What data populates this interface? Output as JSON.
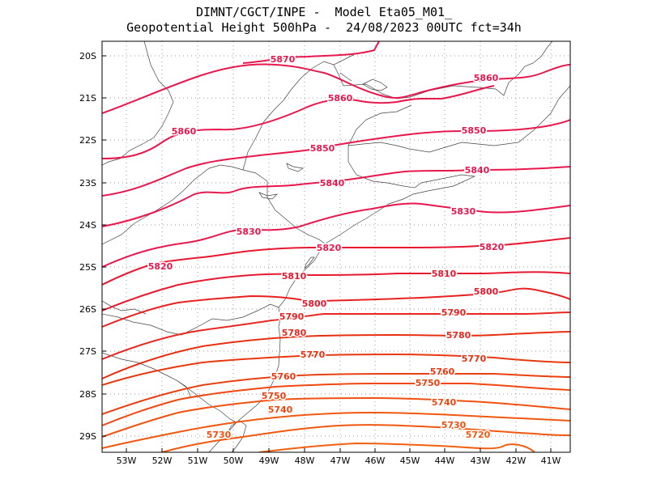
{
  "header": {
    "line1": "DIMNT/CGCT/INPE -  Model Eta05_M01_",
    "line2": "Geopotential Height 500hPa -  24/08/2023 00UTC fct=34h"
  },
  "axes": {
    "lat_labels": [
      "20S",
      "21S",
      "22S",
      "23S",
      "24S",
      "25S",
      "26S",
      "27S",
      "28S",
      "29S"
    ],
    "lon_labels": [
      "53W",
      "52W",
      "51W",
      "50W",
      "49W",
      "48W",
      "47W",
      "46W",
      "45W",
      "44W",
      "43W",
      "42W",
      "41W"
    ]
  },
  "contours": [
    {
      "value": 5870,
      "color": "#e8184e"
    },
    {
      "value": 5860,
      "color": "#e8184e"
    },
    {
      "value": 5850,
      "color": "#e8184e"
    },
    {
      "value": 5840,
      "color": "#e8184e"
    },
    {
      "value": 5830,
      "color": "#e8184e"
    },
    {
      "value": 5820,
      "color": "#e8184e"
    },
    {
      "value": 5810,
      "color": "#e81830"
    },
    {
      "value": 5800,
      "color": "#e81830"
    },
    {
      "value": 5790,
      "color": "#e82020"
    },
    {
      "value": 5780,
      "color": "#e82820"
    },
    {
      "value": 5770,
      "color": "#e83010"
    },
    {
      "value": 5760,
      "color": "#e83810"
    },
    {
      "value": 5750,
      "color": "#e84010"
    },
    {
      "value": 5740,
      "color": "#f04810"
    },
    {
      "value": 5730,
      "color": "#f05010"
    },
    {
      "value": 5720,
      "color": "#f05810"
    }
  ],
  "contour_labels": [
    {
      "text": "5870",
      "color": "#e8184e"
    },
    {
      "text": "5860",
      "color": "#e8184e"
    },
    {
      "text": "5860",
      "color": "#e8184e"
    },
    {
      "text": "5860",
      "color": "#e8184e"
    },
    {
      "text": "5850",
      "color": "#e8184e"
    },
    {
      "text": "5850",
      "color": "#e8184e"
    },
    {
      "text": "5840",
      "color": "#e8184e"
    },
    {
      "text": "5840",
      "color": "#e8184e"
    },
    {
      "text": "5830",
      "color": "#e8184e"
    },
    {
      "text": "5830",
      "color": "#e8184e"
    },
    {
      "text": "5820",
      "color": "#e8184e"
    },
    {
      "text": "5820",
      "color": "#e8184e"
    },
    {
      "text": "5820",
      "color": "#e8184e"
    },
    {
      "text": "5810",
      "color": "#e81830"
    },
    {
      "text": "5810",
      "color": "#e81830"
    },
    {
      "text": "5800",
      "color": "#e81830"
    },
    {
      "text": "5800",
      "color": "#e81830"
    },
    {
      "text": "5790",
      "color": "#e82020"
    },
    {
      "text": "5790",
      "color": "#e82020"
    },
    {
      "text": "5780",
      "color": "#e82820"
    },
    {
      "text": "5780",
      "color": "#e82820"
    },
    {
      "text": "5770",
      "color": "#e83010"
    },
    {
      "text": "5770",
      "color": "#e83010"
    },
    {
      "text": "5760",
      "color": "#e83810"
    },
    {
      "text": "5760",
      "color": "#e83810"
    },
    {
      "text": "5750",
      "color": "#e84010"
    },
    {
      "text": "5750",
      "color": "#e84010"
    },
    {
      "text": "5740",
      "color": "#f04810"
    },
    {
      "text": "5740",
      "color": "#f04810"
    },
    {
      "text": "5730",
      "color": "#f05010"
    },
    {
      "text": "5730",
      "color": "#f05010"
    },
    {
      "text": "5720",
      "color": "#f05810"
    }
  ]
}
